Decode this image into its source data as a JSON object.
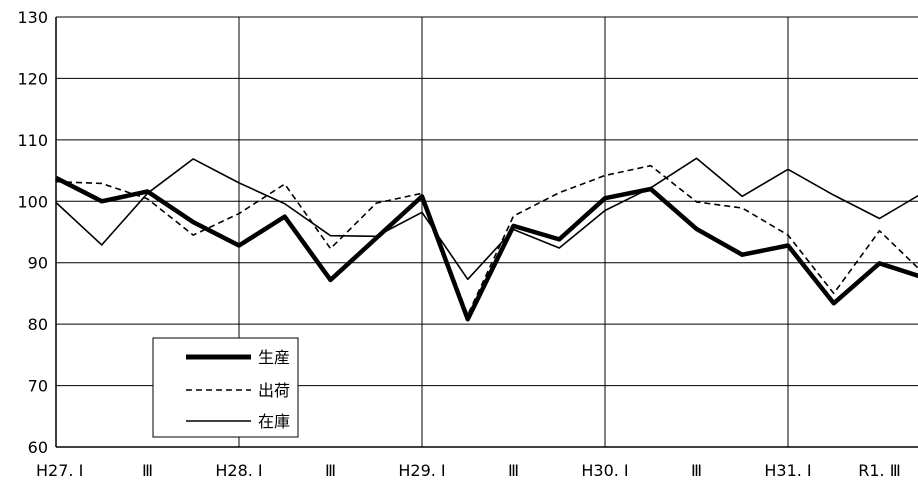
{
  "chart_data": {
    "type": "line",
    "title": "",
    "xlabel": "",
    "ylabel": "",
    "ylim": [
      60,
      130
    ],
    "yticks": [
      60,
      70,
      80,
      90,
      100,
      110,
      120,
      130
    ],
    "x_count": 28,
    "x_tick_labels": [
      {
        "index": 0,
        "label": "H27. Ⅰ"
      },
      {
        "index": 2,
        "label": "Ⅲ"
      },
      {
        "index": 4,
        "label": "H28. Ⅰ"
      },
      {
        "index": 6,
        "label": "Ⅲ"
      },
      {
        "index": 8,
        "label": "H29. Ⅰ"
      },
      {
        "index": 10,
        "label": "Ⅲ"
      },
      {
        "index": 12,
        "label": "H30. Ⅰ"
      },
      {
        "index": 14,
        "label": "Ⅲ"
      },
      {
        "index": 16,
        "label": "H31. Ⅰ"
      },
      {
        "index": 18,
        "label": "R1. Ⅲ"
      }
    ],
    "grid_x_every": 4,
    "grid_y": true,
    "legend_position": "bottom-left",
    "series": [
      {
        "name": "生産",
        "style": "thick-solid",
        "color": "#000000",
        "values": [
          103.8,
          100,
          101.6,
          96.6,
          92.8,
          97.5,
          87.2,
          94.0,
          100.8,
          80.8,
          96.0,
          93.8,
          100.5,
          102.0,
          95.5,
          91.3,
          92.8,
          83.4,
          89.9,
          87.5
        ]
      },
      {
        "name": "出荷",
        "style": "dashed",
        "color": "#000000",
        "values": [
          103.2,
          102.9,
          100.4,
          94.5,
          98.0,
          102.8,
          92.3,
          99.7,
          101.3,
          81.5,
          97.6,
          101.4,
          104.2,
          105.8,
          99.9,
          98.9,
          94.5,
          85.0,
          95.2,
          88.0
        ]
      },
      {
        "name": "在庫",
        "style": "solid",
        "color": "#000000",
        "values": [
          99.8,
          92.9,
          101.3,
          106.9,
          103.0,
          99.6,
          94.4,
          94.3,
          98.2,
          87.3,
          95.4,
          92.4,
          98.5,
          102.2,
          107.0,
          100.8,
          105.2,
          101.0,
          97.2,
          101.6
        ]
      }
    ]
  }
}
